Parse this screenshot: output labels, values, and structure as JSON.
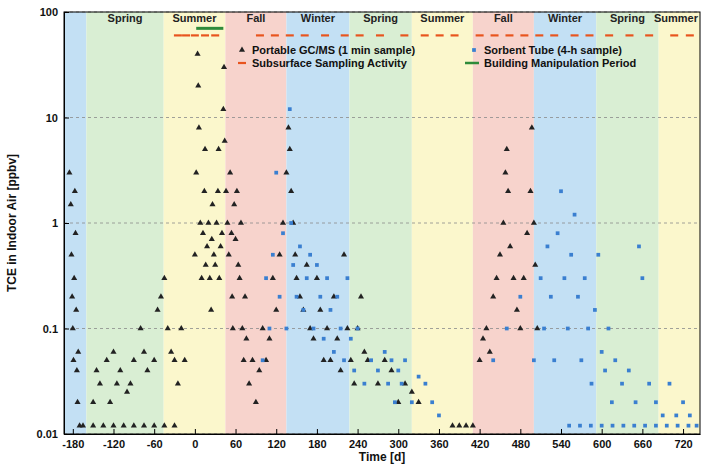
{
  "chart_data": {
    "type": "scatter",
    "xlabel": "Time [d]",
    "ylabel": "TCE in Indoor Air [ppbv]",
    "xlim": [
      -193,
      745
    ],
    "ylim": [
      0.01,
      100
    ],
    "xticks": [
      -180,
      -120,
      -60,
      0,
      60,
      120,
      180,
      240,
      300,
      360,
      420,
      480,
      540,
      600,
      660,
      720
    ],
    "yticks": [
      0.01,
      0.1,
      1,
      10,
      100
    ],
    "log": "y",
    "grid": true,
    "legend": "top",
    "bands": [
      {
        "label": null,
        "x0": -193,
        "x1": -160,
        "color": "#c3e0f4"
      },
      {
        "label": "Spring",
        "x0": -160,
        "x1": -46,
        "color": "#d9eed3"
      },
      {
        "label": "Summer",
        "x0": -46,
        "x1": 45,
        "color": "#fbf7cc"
      },
      {
        "label": "Fall",
        "x0": 45,
        "x1": 135,
        "color": "#f7d3cc"
      },
      {
        "label": "Winter",
        "x0": 135,
        "x1": 228,
        "color": "#c3e0f4"
      },
      {
        "label": "Spring",
        "x0": 228,
        "x1": 320,
        "color": "#d9eed3"
      },
      {
        "label": "Summer",
        "x0": 320,
        "x1": 410,
        "color": "#fbf7cc"
      },
      {
        "label": "Fall",
        "x0": 410,
        "x1": 500,
        "color": "#f7d3cc"
      },
      {
        "label": "Winter",
        "x0": 500,
        "x1": 592,
        "color": "#c3e0f4"
      },
      {
        "label": "Spring",
        "x0": 592,
        "x1": 684,
        "color": "#d9eed3"
      },
      {
        "label": "Summer",
        "x0": 684,
        "x1": 745,
        "color": "#fbf7cc"
      }
    ],
    "series": [
      {
        "name": "Portable GC/MS (1 min sample)",
        "color": "#222222",
        "marker": "triangle",
        "x": [
          -185,
          -183,
          -182,
          -181,
          -180,
          -179,
          -178,
          -177,
          -176,
          -175,
          -174,
          -173,
          -172,
          -170,
          -165,
          -150,
          -150,
          -145,
          -140,
          -135,
          -130,
          -125,
          -120,
          -120,
          -115,
          -110,
          -105,
          -100,
          -95,
          -90,
          -90,
          -80,
          -75,
          -75,
          -70,
          -60,
          -60,
          -55,
          -50,
          -45,
          -45,
          -40,
          -35,
          -30,
          -30,
          -25,
          -20,
          -15,
          0,
          2,
          4,
          5,
          6,
          8,
          10,
          12,
          14,
          15,
          16,
          18,
          20,
          22,
          24,
          25,
          26,
          28,
          30,
          32,
          34,
          35,
          36,
          38,
          40,
          42,
          43,
          44,
          46,
          48,
          50,
          52,
          54,
          55,
          56,
          58,
          60,
          62,
          64,
          66,
          68,
          70,
          72,
          74,
          76,
          80,
          85,
          90,
          95,
          100,
          105,
          110,
          115,
          120,
          125,
          130,
          135,
          138,
          140,
          142,
          145,
          148,
          150,
          155,
          160,
          165,
          170,
          175,
          180,
          185,
          190,
          195,
          200,
          205,
          210,
          215,
          220,
          225,
          230,
          235,
          240,
          245,
          250,
          255,
          270,
          280,
          290,
          300,
          310,
          320,
          330,
          380,
          390,
          400,
          410,
          420,
          425,
          430,
          435,
          440,
          445,
          450,
          455,
          458,
          460,
          462,
          465,
          470,
          475,
          480,
          485,
          490,
          495,
          497,
          500,
          502,
          505
        ],
        "values": [
          3,
          1.5,
          0.5,
          0.2,
          0.1,
          0.05,
          0.3,
          2,
          0.8,
          0.15,
          0.04,
          0.02,
          0.06,
          0.012,
          0.012,
          0.02,
          0.012,
          0.04,
          0.03,
          0.012,
          0.05,
          0.02,
          0.06,
          0.012,
          0.03,
          0.04,
          0.012,
          0.025,
          0.03,
          0.05,
          0.012,
          0.1,
          0.06,
          0.012,
          0.04,
          0.05,
          0.012,
          0.15,
          0.2,
          0.3,
          0.012,
          0.1,
          0.06,
          0.05,
          0.012,
          0.03,
          0.1,
          0.05,
          0.5,
          3,
          40,
          20,
          8,
          1,
          0.3,
          0.8,
          2,
          5,
          0.4,
          0.6,
          1,
          0.3,
          0.15,
          0.7,
          1.5,
          0.5,
          0.4,
          1,
          2,
          5,
          0.3,
          0.6,
          0.8,
          12,
          30,
          6,
          2,
          1,
          0.5,
          3,
          0.8,
          0.2,
          0.1,
          1.5,
          0.7,
          2,
          0.4,
          0.3,
          1,
          0.1,
          0.05,
          0.2,
          0.08,
          0.03,
          0.05,
          0.02,
          0.04,
          0.1,
          0.05,
          0.08,
          0.3,
          0.15,
          0.5,
          1,
          3,
          8,
          5,
          2,
          1,
          0.5,
          0.3,
          0.2,
          0.15,
          0.4,
          0.1,
          0.08,
          0.3,
          0.15,
          0.05,
          0.1,
          0.05,
          0.2,
          0.08,
          0.04,
          0.5,
          0.1,
          0.05,
          0.03,
          0.1,
          0.2,
          0.06,
          0.05,
          0.03,
          0.05,
          0.04,
          0.02,
          0.03,
          0.025,
          0.02,
          0.012,
          0.012,
          0.012,
          0.012,
          0.05,
          0.08,
          0.1,
          0.06,
          0.2,
          0.3,
          0.5,
          1,
          3,
          5,
          2,
          0.6,
          0.3,
          0.15,
          0.1,
          0.3,
          0.8,
          2,
          8,
          1,
          0.4,
          0.1
        ]
      },
      {
        "name": "Sorbent Tube (4-h sample)",
        "color": "#3a7fd0",
        "marker": "square",
        "x": [
          100,
          105,
          110,
          115,
          120,
          125,
          130,
          135,
          140,
          142,
          145,
          150,
          155,
          160,
          165,
          170,
          175,
          180,
          185,
          190,
          195,
          200,
          205,
          210,
          215,
          220,
          225,
          230,
          235,
          240,
          250,
          260,
          270,
          280,
          285,
          290,
          295,
          300,
          305,
          310,
          320,
          330,
          340,
          350,
          360,
          440,
          460,
          480,
          500,
          510,
          515,
          520,
          525,
          530,
          535,
          540,
          545,
          550,
          555,
          560,
          565,
          570,
          575,
          580,
          585,
          590,
          595,
          600,
          605,
          610,
          615,
          620,
          630,
          640,
          650,
          655,
          660,
          670,
          680,
          690,
          700,
          710,
          720,
          730,
          740,
          552,
          568,
          584,
          600,
          616,
          632,
          648,
          664,
          680,
          696,
          712,
          728
        ],
        "values": [
          0.05,
          0.3,
          0.1,
          0.5,
          3,
          0.2,
          0.8,
          0.1,
          12,
          1,
          0.4,
          0.2,
          0.6,
          0.15,
          0.3,
          0.5,
          0.1,
          0.4,
          0.2,
          0.08,
          0.3,
          0.15,
          0.06,
          0.2,
          0.1,
          0.05,
          0.3,
          0.08,
          0.04,
          0.1,
          0.03,
          0.05,
          0.04,
          0.06,
          0.03,
          0.05,
          0.02,
          0.04,
          0.03,
          0.05,
          0.02,
          0.035,
          0.03,
          0.02,
          0.015,
          0.05,
          0.1,
          0.2,
          0.05,
          0.3,
          0.1,
          0.6,
          0.2,
          0.05,
          0.8,
          2,
          0.3,
          0.1,
          0.5,
          1.2,
          0.2,
          0.05,
          0.3,
          0.1,
          0.03,
          0.15,
          0.5,
          0.06,
          0.04,
          0.1,
          0.02,
          0.05,
          0.03,
          0.04,
          0.02,
          0.6,
          0.3,
          0.03,
          0.02,
          0.015,
          0.03,
          0.015,
          0.02,
          0.015,
          0.012,
          0.012,
          0.012,
          0.012,
          0.012,
          0.012,
          0.012,
          0.012,
          0.012,
          0.012,
          0.012,
          0.012,
          0.012
        ]
      },
      {
        "name": "Subsurface Sampling Activity",
        "color": "#e8541e",
        "marker": "dash",
        "x": [
          -25,
          -13,
          0,
          15,
          30,
          96,
          118,
          140,
          162,
          192,
          221,
          243,
          273,
          309,
          339,
          361,
          383,
          420,
          442,
          464,
          486,
          508,
          530,
          560,
          582,
          611,
          641,
          670,
          707,
          730
        ],
        "values": [
          60,
          60,
          60,
          60,
          60,
          60,
          60,
          60,
          60,
          60,
          60,
          60,
          60,
          60,
          60,
          60,
          60,
          60,
          60,
          60,
          60,
          60,
          60,
          60,
          60,
          60,
          60,
          60,
          60,
          60
        ]
      },
      {
        "name": "Building Manipulation Period",
        "type": "line",
        "color": "#2e8b3a",
        "line_style": "solid",
        "x": [
          2,
          42
        ],
        "values": [
          70,
          70
        ]
      }
    ]
  }
}
